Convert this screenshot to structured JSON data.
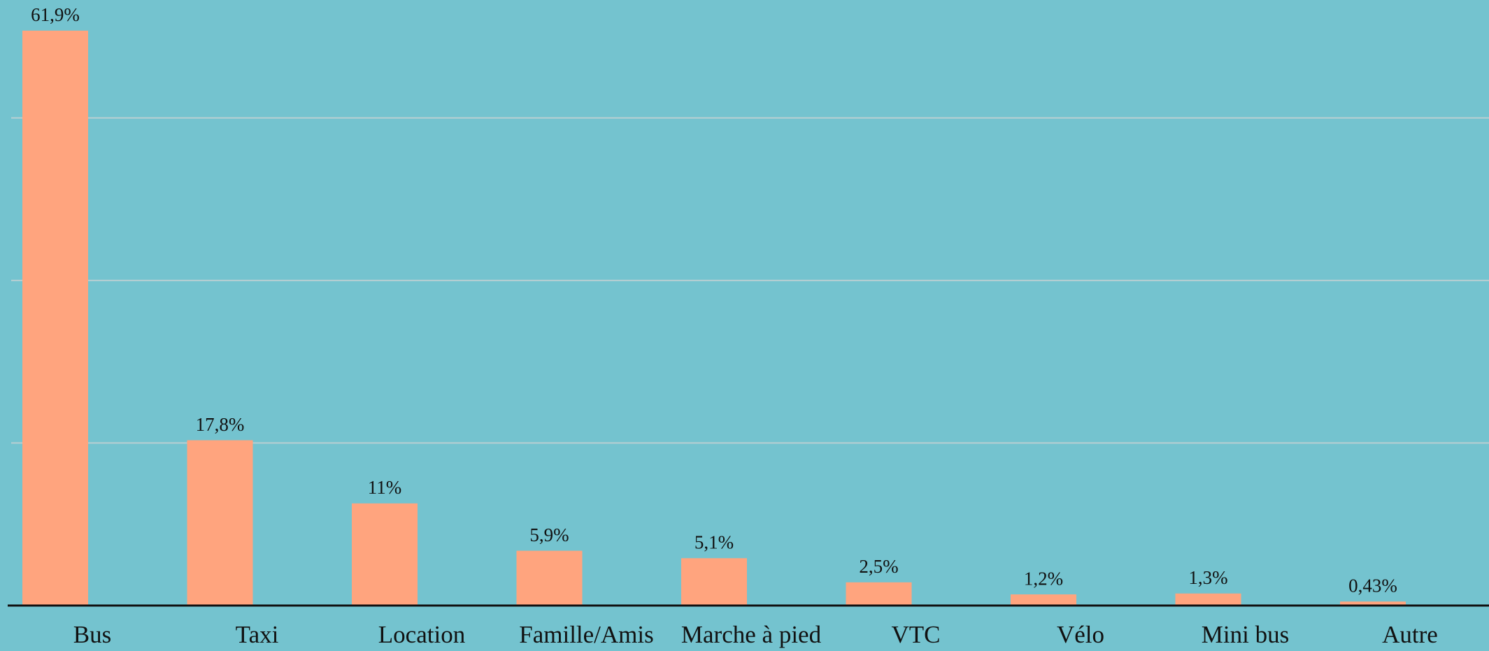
{
  "chart_data": {
    "type": "bar",
    "categories": [
      "Bus",
      "Taxi",
      "Location",
      "Famille/Amis",
      "Marche à pied",
      "VTC",
      "Vélo",
      "Mini bus",
      "Autre"
    ],
    "values": [
      61.9,
      17.8,
      11,
      5.9,
      5.1,
      2.5,
      1.2,
      1.3,
      0.43
    ],
    "value_labels": [
      "61,9%",
      "17,8%",
      "11%",
      "5,9%",
      "5,1%",
      "2,5%",
      "1,2%",
      "1,3%",
      "0,43%"
    ],
    "color": "#ffa47e",
    "ylim": [
      0,
      65.2
    ],
    "yticks": [
      0,
      17.5,
      35,
      52.5
    ],
    "grid": true
  }
}
